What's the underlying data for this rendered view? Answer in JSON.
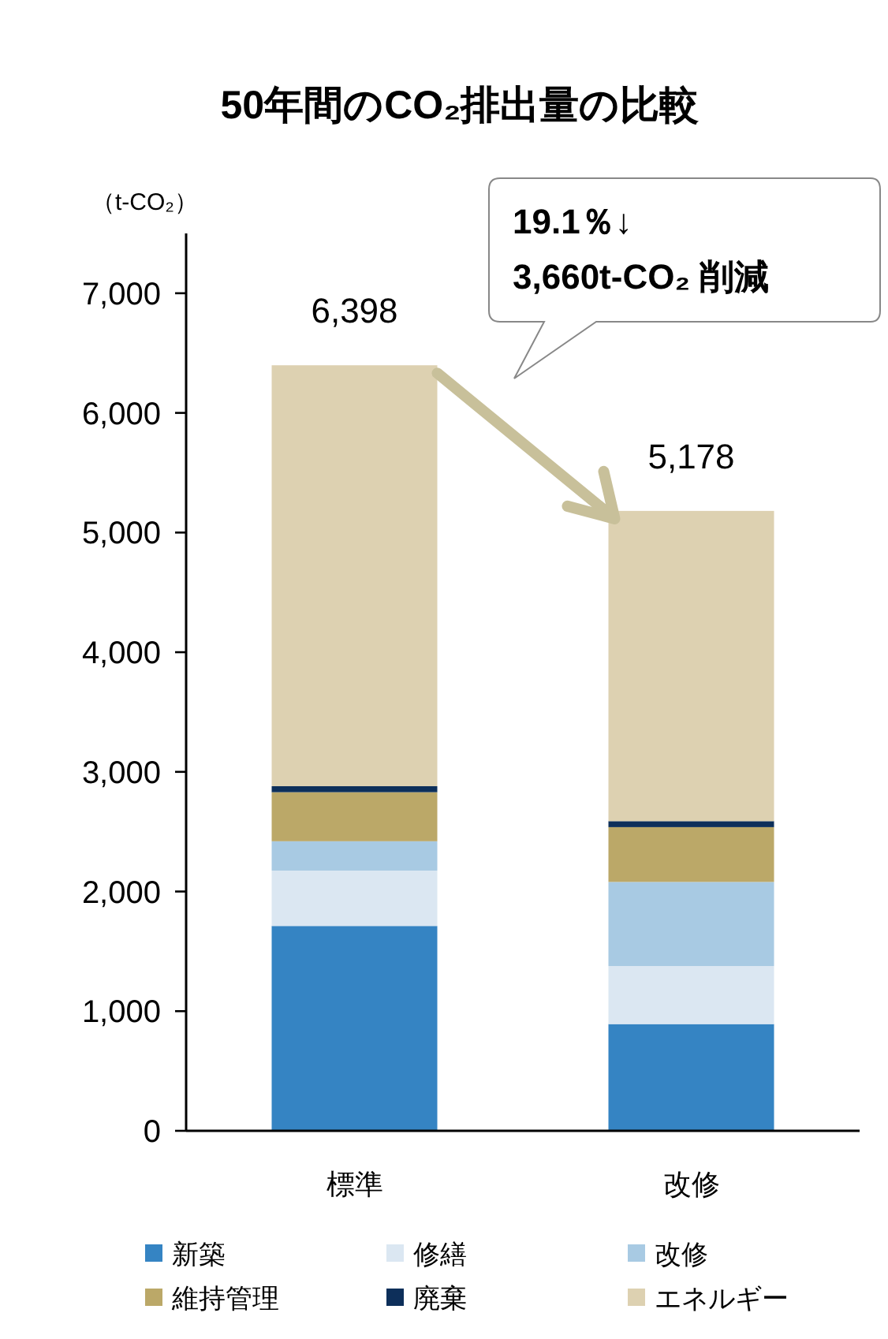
{
  "chart_data": {
    "type": "bar",
    "stacked": true,
    "title": "50年間のCO₂排出量の比較",
    "ylabel": "（t-CO₂）",
    "categories": [
      "標準",
      "改修"
    ],
    "series": [
      {
        "name": "新築",
        "color": "#3584c3",
        "values": [
          1712,
          892
        ]
      },
      {
        "name": "修繕",
        "color": "#dbe7f2",
        "values": [
          463,
          485
        ]
      },
      {
        "name": "改修",
        "color": "#a8cae3",
        "values": [
          245,
          703
        ]
      },
      {
        "name": "維持管理",
        "color": "#bba868",
        "values": [
          410,
          458
        ]
      },
      {
        "name": "廃棄",
        "color": "#0d2f5a",
        "values": [
          50,
          50
        ]
      },
      {
        "name": "エネルギー",
        "color": "#ddd1b1",
        "values": [
          3518,
          2593
        ]
      }
    ],
    "totals": [
      "6,398",
      "5,178"
    ],
    "ylim": [
      0,
      7500
    ],
    "yticks": [
      0,
      {
        "value": 1000,
        "label": "1,000"
      },
      {
        "value": 2000,
        "label": "2,000"
      },
      {
        "value": 3000,
        "label": "3,000"
      },
      {
        "value": 4000,
        "label": "4,000"
      },
      {
        "value": 5000,
        "label": "5,000"
      },
      {
        "value": 6000,
        "label": "6,000"
      },
      {
        "value": 7000,
        "label": "7,000"
      }
    ],
    "annotations": [
      "19.1％↓",
      "3,660t-CO₂ 削減"
    ],
    "legend": "bottom",
    "grid": false
  }
}
